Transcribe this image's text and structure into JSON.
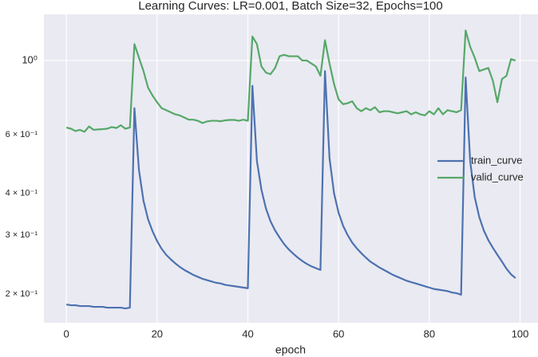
{
  "chart_data": {
    "type": "line",
    "title": "Learning Curves: LR=0.001, Batch Size=32, Epochs=100",
    "x_label": "epoch",
    "x": [
      0,
      1,
      2,
      3,
      4,
      5,
      6,
      7,
      8,
      9,
      10,
      11,
      12,
      13,
      14,
      15,
      16,
      17,
      18,
      19,
      20,
      21,
      22,
      23,
      24,
      25,
      26,
      27,
      28,
      29,
      30,
      31,
      32,
      33,
      34,
      35,
      36,
      37,
      38,
      39,
      40,
      41,
      42,
      43,
      44,
      45,
      46,
      47,
      48,
      49,
      50,
      51,
      52,
      53,
      54,
      55,
      56,
      57,
      58,
      59,
      60,
      61,
      62,
      63,
      64,
      65,
      66,
      67,
      68,
      69,
      70,
      71,
      72,
      73,
      74,
      75,
      76,
      77,
      78,
      79,
      80,
      81,
      82,
      83,
      84,
      85,
      86,
      87,
      88,
      89,
      90,
      91,
      92,
      93,
      94,
      95,
      96,
      97,
      98,
      99
    ],
    "series": [
      {
        "name": "train_curve",
        "color": "#4c72b0",
        "values": [
          0.186,
          0.185,
          0.185,
          0.184,
          0.184,
          0.184,
          0.183,
          0.183,
          0.183,
          0.182,
          0.182,
          0.182,
          0.182,
          0.181,
          0.182,
          0.72,
          0.47,
          0.38,
          0.335,
          0.308,
          0.288,
          0.273,
          0.262,
          0.254,
          0.247,
          0.241,
          0.236,
          0.232,
          0.228,
          0.225,
          0.222,
          0.22,
          0.218,
          0.216,
          0.215,
          0.213,
          0.212,
          0.211,
          0.21,
          0.209,
          0.208,
          0.84,
          0.5,
          0.41,
          0.36,
          0.33,
          0.31,
          0.295,
          0.282,
          0.272,
          0.264,
          0.257,
          0.251,
          0.246,
          0.242,
          0.239,
          0.236,
          0.93,
          0.51,
          0.4,
          0.35,
          0.32,
          0.3,
          0.285,
          0.274,
          0.265,
          0.257,
          0.25,
          0.245,
          0.24,
          0.236,
          0.232,
          0.228,
          0.225,
          0.222,
          0.219,
          0.217,
          0.215,
          0.213,
          0.211,
          0.209,
          0.207,
          0.206,
          0.205,
          0.204,
          0.202,
          0.201,
          0.199,
          0.89,
          0.5,
          0.39,
          0.34,
          0.31,
          0.29,
          0.275,
          0.262,
          0.25,
          0.238,
          0.229,
          0.223
        ]
      },
      {
        "name": "valid_curve",
        "color": "#55a868",
        "values": [
          0.63,
          0.625,
          0.615,
          0.62,
          0.612,
          0.635,
          0.62,
          0.622,
          0.623,
          0.625,
          0.632,
          0.628,
          0.64,
          0.625,
          0.63,
          1.12,
          1.02,
          0.93,
          0.83,
          0.785,
          0.75,
          0.72,
          0.71,
          0.7,
          0.69,
          0.685,
          0.675,
          0.665,
          0.665,
          0.66,
          0.65,
          0.657,
          0.66,
          0.66,
          0.658,
          0.662,
          0.664,
          0.664,
          0.66,
          0.665,
          0.66,
          1.18,
          1.12,
          0.96,
          0.92,
          0.91,
          0.95,
          1.03,
          1.04,
          1.03,
          1.03,
          1.03,
          1.0,
          1.0,
          0.98,
          0.96,
          0.9,
          1.15,
          0.98,
          0.85,
          0.765,
          0.74,
          0.745,
          0.755,
          0.72,
          0.705,
          0.72,
          0.71,
          0.725,
          0.7,
          0.705,
          0.705,
          0.7,
          0.695,
          0.7,
          0.705,
          0.69,
          0.7,
          0.69,
          0.685,
          0.705,
          0.69,
          0.72,
          0.69,
          0.71,
          0.705,
          0.7,
          0.71,
          1.23,
          1.1,
          1.02,
          0.93,
          0.94,
          0.95,
          0.87,
          0.75,
          0.88,
          0.9,
          1.01,
          1.0
        ]
      }
    ],
    "xlim": [
      -4.95,
      103.95
    ],
    "xticks": [
      0,
      20,
      40,
      60,
      80,
      100
    ],
    "ylim": [
      0.164,
      1.375
    ],
    "log_y": true,
    "yticks": [
      {
        "value": 1,
        "label": "10⁰"
      }
    ],
    "yminor_ticks": [
      {
        "value": 0.2,
        "label": "2 × 10⁻¹"
      },
      {
        "value": 0.3,
        "label": "3 × 10⁻¹"
      },
      {
        "value": 0.4,
        "label": "4 × 10⁻¹"
      },
      {
        "value": 0.6,
        "label": "6 × 10⁻¹"
      }
    ],
    "grid": true,
    "legend": "right"
  }
}
